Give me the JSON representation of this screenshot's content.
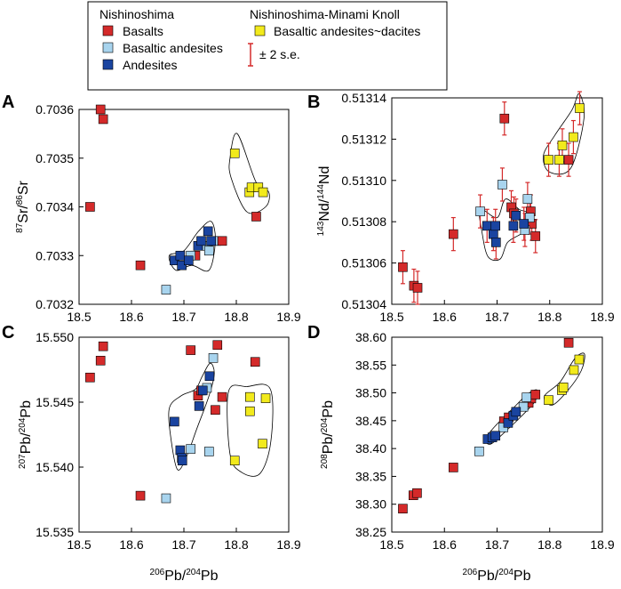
{
  "legend": {
    "group1_title": "Nishinoshima",
    "group2_title": "Nishinoshima-Minami Knoll",
    "basalts": "Basalts",
    "basaltic_andesites": "Basaltic andesites",
    "andesites": "Andesites",
    "basaltic_andesites_dacites": "Basaltic andesites~dacites",
    "error_label": "± 2 s.e."
  },
  "colors": {
    "basalts": "#d42a2a",
    "basaltic_andesites": "#a8d4ee",
    "andesites": "#1a44a0",
    "basaltic_andesites_dacites": "#f2ea1c",
    "error_bar": "#d42a2a"
  },
  "chart_data": [
    {
      "id": "A",
      "type": "scatter",
      "panel_label": "A",
      "xlabel": "",
      "ylabel_sup": "87",
      "ylabel_mid": "Sr/",
      "ylabel_sup2": "86",
      "ylabel_end": "Sr",
      "xlim": [
        18.5,
        18.9
      ],
      "ylim": [
        0.7032,
        0.7036
      ],
      "xticks": [
        "18.5",
        "18.6",
        "18.7",
        "18.8",
        "18.9"
      ],
      "yticks": [
        "0.7032",
        "0.7033",
        "0.7034",
        "0.7035",
        "0.7036"
      ],
      "series": [
        {
          "name": "Basalts",
          "color_key": "basalts",
          "points": [
            [
              18.541,
              0.7036
            ],
            [
              18.546,
              0.70358
            ],
            [
              18.521,
              0.7034
            ],
            [
              18.617,
              0.70328
            ],
            [
              18.722,
              0.7033
            ],
            [
              18.762,
              0.70333
            ],
            [
              18.773,
              0.70333
            ],
            [
              18.838,
              0.70338
            ]
          ]
        },
        {
          "name": "Basaltic andesites",
          "color_key": "basaltic_andesites",
          "points": [
            [
              18.666,
              0.70323
            ],
            [
              18.713,
              0.7033
            ],
            [
              18.744,
              0.70332
            ],
            [
              18.748,
              0.70331
            ],
            [
              18.756,
              0.70333
            ]
          ]
        },
        {
          "name": "Andesites",
          "color_key": "andesites",
          "points": [
            [
              18.682,
              0.70329
            ],
            [
              18.693,
              0.7033
            ],
            [
              18.696,
              0.70328
            ],
            [
              18.709,
              0.70329
            ],
            [
              18.727,
              0.70332
            ],
            [
              18.733,
              0.70333
            ],
            [
              18.746,
              0.70335
            ],
            [
              18.752,
              0.70333
            ]
          ]
        },
        {
          "name": "Basaltic andesites~dacites",
          "color_key": "basaltic_andesites_dacites",
          "points": [
            [
              18.797,
              0.70351
            ],
            [
              18.825,
              0.70343
            ],
            [
              18.829,
              0.70344
            ],
            [
              18.842,
              0.70344
            ],
            [
              18.851,
              0.70343
            ]
          ]
        }
      ],
      "envelopes": [
        [
          [
            18.672,
            0.7033
          ],
          [
            18.7,
            0.70331
          ],
          [
            18.728,
            0.70335
          ],
          [
            18.752,
            0.70337
          ],
          [
            18.76,
            0.70333
          ],
          [
            18.748,
            0.70327
          ],
          [
            18.715,
            0.70328
          ],
          [
            18.685,
            0.70327
          ]
        ],
        [
          [
            18.788,
            0.7035
          ],
          [
            18.802,
            0.70355
          ],
          [
            18.838,
            0.70345
          ],
          [
            18.862,
            0.70343
          ],
          [
            18.856,
            0.7034
          ],
          [
            18.82,
            0.70339
          ],
          [
            18.79,
            0.70346
          ]
        ]
      ]
    },
    {
      "id": "B",
      "type": "scatter",
      "panel_label": "B",
      "xlabel": "",
      "ylabel_sup": "143",
      "ylabel_mid": "Nd/",
      "ylabel_sup2": "144",
      "ylabel_end": "Nd",
      "xlim": [
        18.5,
        18.9
      ],
      "ylim": [
        0.51304,
        0.51314
      ],
      "xticks": [
        "18.5",
        "18.6",
        "18.7",
        "18.8",
        "18.9"
      ],
      "yticks": [
        "0.51304",
        "0.51306",
        "0.51308",
        "0.51310",
        "0.51312",
        "0.51314"
      ],
      "series": [
        {
          "name": "Basalts",
          "color_key": "basalts",
          "err": 8e-06,
          "points": [
            [
              18.521,
              0.513058
            ],
            [
              18.542,
              0.513049
            ],
            [
              18.549,
              0.513048
            ],
            [
              18.617,
              0.513074
            ],
            [
              18.714,
              0.51313
            ],
            [
              18.727,
              0.513087
            ],
            [
              18.732,
              0.513084
            ],
            [
              18.764,
              0.513085
            ],
            [
              18.766,
              0.513079
            ],
            [
              18.773,
              0.513073
            ],
            [
              18.836,
              0.51311
            ]
          ]
        },
        {
          "name": "Basaltic andesites",
          "color_key": "basaltic_andesites",
          "err": 8e-06,
          "points": [
            [
              18.668,
              0.513085
            ],
            [
              18.71,
              0.513098
            ],
            [
              18.753,
              0.513076
            ],
            [
              18.758,
              0.513091
            ],
            [
              18.762,
              0.513082
            ]
          ]
        },
        {
          "name": "Andesites",
          "color_key": "andesites",
          "err": 8e-06,
          "points": [
            [
              18.681,
              0.513078
            ],
            [
              18.693,
              0.513074
            ],
            [
              18.697,
              0.513078
            ],
            [
              18.698,
              0.51307
            ],
            [
              18.731,
              0.513078
            ],
            [
              18.736,
              0.513083
            ],
            [
              18.751,
              0.513079
            ]
          ]
        },
        {
          "name": "Basaltic andesites~dacites",
          "color_key": "basaltic_andesites_dacites",
          "err": 8e-06,
          "points": [
            [
              18.798,
              0.51311
            ],
            [
              18.818,
              0.51311
            ],
            [
              18.824,
              0.513117
            ],
            [
              18.845,
              0.513121
            ],
            [
              18.857,
              0.513135
            ]
          ]
        }
      ],
      "envelopes": [
        [
          [
            18.668,
            0.513086
          ],
          [
            18.7,
            0.513082
          ],
          [
            18.716,
            0.513091
          ],
          [
            18.742,
            0.513086
          ],
          [
            18.762,
            0.513084
          ],
          [
            18.766,
            0.513078
          ],
          [
            18.745,
            0.513074
          ],
          [
            18.72,
            0.51307
          ],
          [
            18.706,
            0.513062
          ],
          [
            18.683,
            0.513063
          ],
          [
            18.672,
            0.513074
          ]
        ],
        [
          [
            18.788,
            0.513112
          ],
          [
            18.81,
            0.513122
          ],
          [
            18.842,
            0.513134
          ],
          [
            18.856,
            0.513142
          ],
          [
            18.865,
            0.51313
          ],
          [
            18.84,
            0.513106
          ],
          [
            18.8,
            0.513104
          ]
        ]
      ]
    },
    {
      "id": "C",
      "type": "scatter",
      "panel_label": "C",
      "xlabel_sup": "206",
      "xlabel_mid": "Pb/",
      "xlabel_sup2": "204",
      "xlabel_end": "Pb",
      "ylabel_sup": "207",
      "ylabel_mid": "Pb/",
      "ylabel_sup2": "204",
      "ylabel_end": "Pb",
      "xlim": [
        18.5,
        18.9
      ],
      "ylim": [
        15.535,
        15.55
      ],
      "xticks": [
        "18.5",
        "18.6",
        "18.7",
        "18.8",
        "18.9"
      ],
      "yticks": [
        "15.535",
        "15.540",
        "15.545",
        "15.550"
      ],
      "series": [
        {
          "name": "Basalts",
          "color_key": "basalts",
          "points": [
            [
              18.521,
              15.5469
            ],
            [
              18.541,
              15.5482
            ],
            [
              18.546,
              15.5493
            ],
            [
              18.617,
              15.5378
            ],
            [
              18.713,
              15.549
            ],
            [
              18.727,
              15.5455
            ],
            [
              18.733,
              15.5459
            ],
            [
              18.76,
              15.5444
            ],
            [
              18.764,
              15.5494
            ],
            [
              18.773,
              15.5454
            ],
            [
              18.836,
              15.5481
            ]
          ]
        },
        {
          "name": "Basaltic andesites",
          "color_key": "basaltic_andesites",
          "points": [
            [
              18.666,
              15.5376
            ],
            [
              18.713,
              15.5414
            ],
            [
              18.744,
              15.5461
            ],
            [
              18.748,
              15.5412
            ],
            [
              18.756,
              15.5484
            ]
          ]
        },
        {
          "name": "Andesites",
          "color_key": "andesites",
          "points": [
            [
              18.682,
              15.5435
            ],
            [
              18.693,
              15.5413
            ],
            [
              18.696,
              15.5407
            ],
            [
              18.697,
              15.5405
            ],
            [
              18.729,
              15.5447
            ],
            [
              18.736,
              15.5459
            ],
            [
              18.749,
              15.547
            ]
          ]
        },
        {
          "name": "Basaltic andesites~dacites",
          "color_key": "basaltic_andesites_dacites",
          "points": [
            [
              18.797,
              15.5405
            ],
            [
              18.826,
              15.5443
            ],
            [
              18.826,
              15.5454
            ],
            [
              18.85,
              15.5418
            ],
            [
              18.856,
              15.5453
            ]
          ]
        }
      ],
      "envelopes": [
        [
          [
            18.672,
            15.5445
          ],
          [
            18.695,
            15.5455
          ],
          [
            18.722,
            15.546
          ],
          [
            18.735,
            15.547
          ],
          [
            18.75,
            15.548
          ],
          [
            18.758,
            15.5472
          ],
          [
            18.748,
            15.5455
          ],
          [
            18.725,
            15.543
          ],
          [
            18.705,
            15.5408
          ],
          [
            18.688,
            15.5398
          ],
          [
            18.676,
            15.542
          ]
        ],
        [
          [
            18.785,
            15.5458
          ],
          [
            18.82,
            15.5462
          ],
          [
            18.865,
            15.546
          ],
          [
            18.866,
            15.542
          ],
          [
            18.845,
            15.5395
          ],
          [
            18.81,
            15.5396
          ],
          [
            18.788,
            15.541
          ]
        ]
      ]
    },
    {
      "id": "D",
      "type": "scatter",
      "panel_label": "D",
      "xlabel_sup": "206",
      "xlabel_mid": "Pb/",
      "xlabel_sup2": "204",
      "xlabel_end": "Pb",
      "ylabel_sup": "208",
      "ylabel_mid": "Pb/",
      "ylabel_sup2": "204",
      "ylabel_end": "Pb",
      "xlim": [
        18.5,
        18.9
      ],
      "ylim": [
        38.25,
        38.6
      ],
      "xticks": [
        "18.5",
        "18.6",
        "18.7",
        "18.8",
        "18.9"
      ],
      "yticks": [
        "38.25",
        "38.30",
        "38.35",
        "38.40",
        "38.45",
        "38.50",
        "38.55",
        "38.60"
      ],
      "series": [
        {
          "name": "Basalts",
          "color_key": "basalts",
          "points": [
            [
              18.521,
              38.292
            ],
            [
              18.541,
              38.316
            ],
            [
              18.548,
              38.32
            ],
            [
              18.617,
              38.366
            ],
            [
              18.713,
              38.449
            ],
            [
              18.722,
              38.456
            ],
            [
              18.76,
              38.482
            ],
            [
              18.765,
              38.49
            ],
            [
              18.773,
              38.497
            ],
            [
              18.836,
              38.59
            ]
          ]
        },
        {
          "name": "Basaltic andesites",
          "color_key": "basaltic_andesites",
          "points": [
            [
              18.666,
              38.395
            ],
            [
              18.712,
              38.438
            ],
            [
              18.75,
              38.475
            ],
            [
              18.756,
              38.492
            ]
          ]
        },
        {
          "name": "Andesites",
          "color_key": "andesites",
          "points": [
            [
              18.682,
              38.417
            ],
            [
              18.691,
              38.42
            ],
            [
              18.697,
              38.423
            ],
            [
              18.721,
              38.446
            ],
            [
              18.731,
              38.459
            ],
            [
              18.736,
              38.466
            ]
          ]
        },
        {
          "name": "Basaltic andesites~dacites",
          "color_key": "basaltic_andesites_dacites",
          "points": [
            [
              18.798,
              38.487
            ],
            [
              18.823,
              38.505
            ],
            [
              18.826,
              38.51
            ],
            [
              18.846,
              38.541
            ],
            [
              18.856,
              38.56
            ]
          ]
        }
      ],
      "envelopes": [
        [
          [
            18.678,
            38.418
          ],
          [
            18.7,
            38.444
          ],
          [
            18.73,
            38.472
          ],
          [
            18.758,
            38.498
          ],
          [
            18.776,
            38.505
          ],
          [
            18.772,
            38.485
          ],
          [
            18.745,
            38.457
          ],
          [
            18.715,
            38.43
          ],
          [
            18.688,
            38.408
          ]
        ],
        [
          [
            18.79,
            38.494
          ],
          [
            18.82,
            38.52
          ],
          [
            18.848,
            38.562
          ],
          [
            18.866,
            38.57
          ],
          [
            18.86,
            38.54
          ],
          [
            18.835,
            38.505
          ],
          [
            18.805,
            38.478
          ]
        ]
      ]
    }
  ]
}
